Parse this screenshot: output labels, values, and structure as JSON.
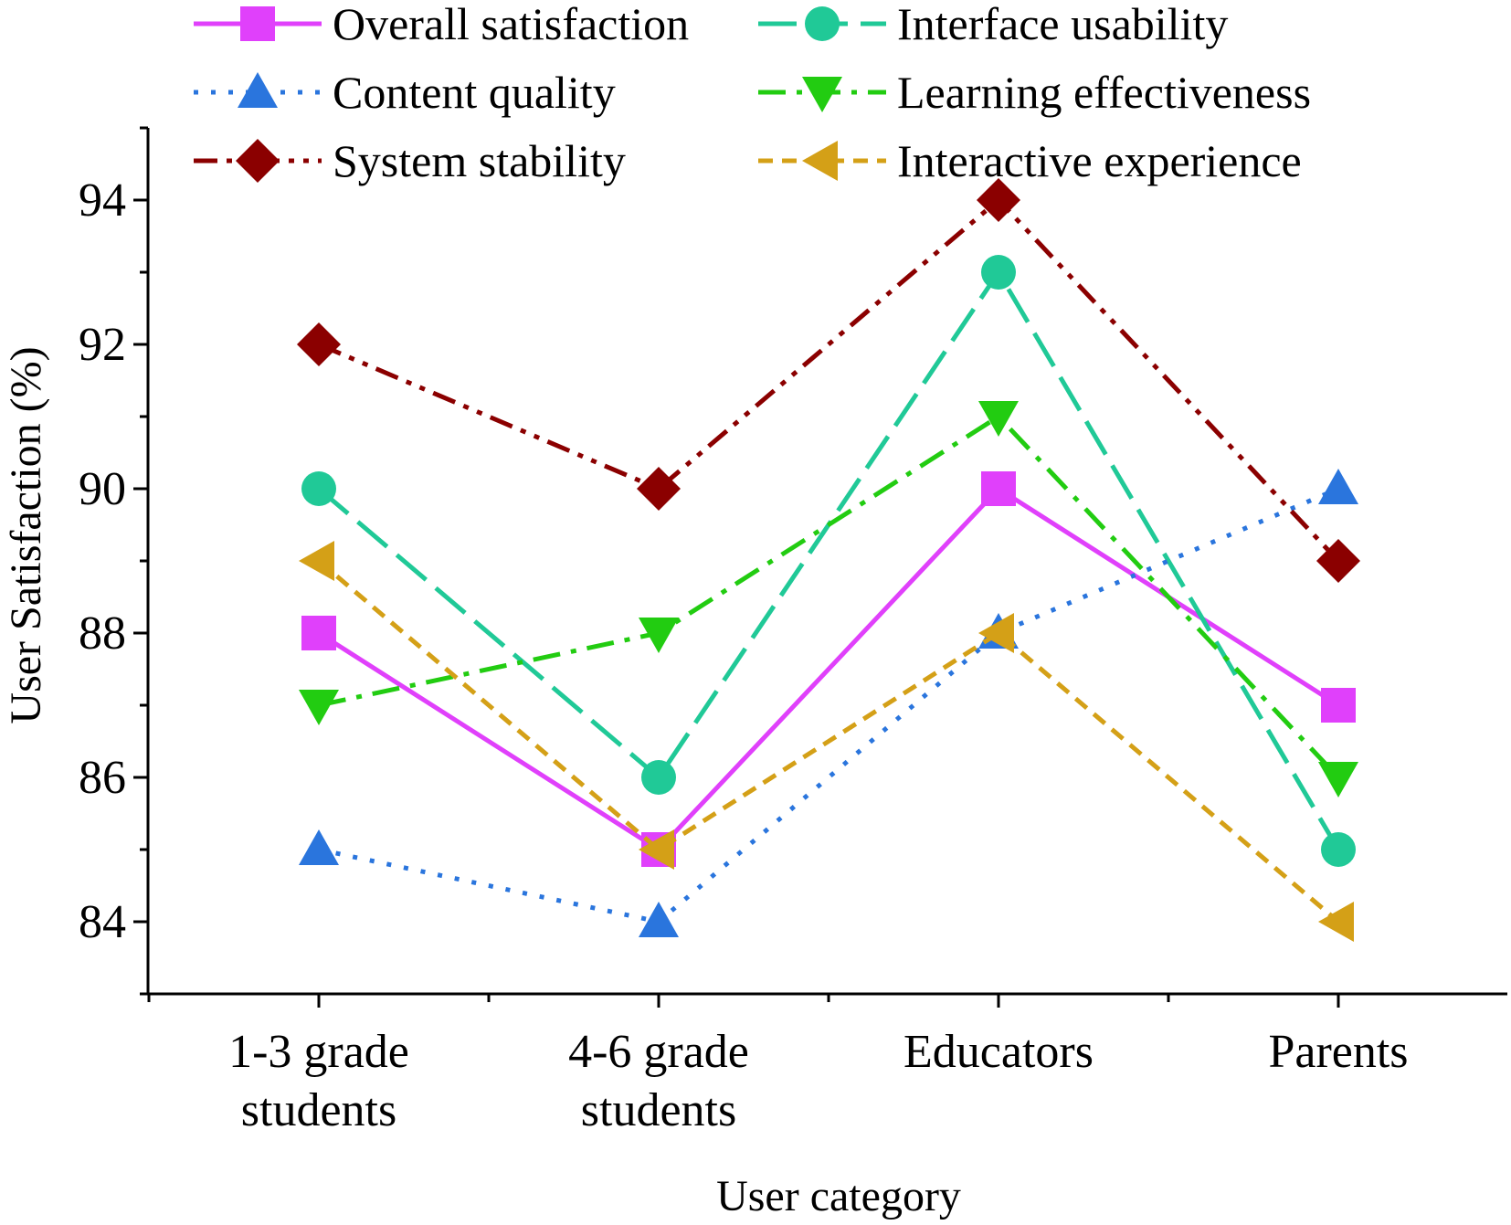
{
  "chart_data": {
    "type": "line",
    "title": "",
    "xlabel": "User category",
    "ylabel": "User Satisfaction (%)",
    "categories": [
      [
        "1-3 grade",
        "students"
      ],
      [
        "4-6 grade",
        "students"
      ],
      [
        "Educators"
      ],
      [
        "Parents"
      ]
    ],
    "ylim": [
      83,
      95
    ],
    "yticks": [
      84,
      86,
      88,
      90,
      92,
      94
    ],
    "legend_position": "top",
    "series": [
      {
        "name": "Overall satisfaction",
        "values": [
          88,
          85,
          90,
          87
        ],
        "color": "#e040fb",
        "marker": "square",
        "dash": "solid"
      },
      {
        "name": "Interface usability",
        "values": [
          90,
          86,
          93,
          85
        ],
        "color": "#20c997",
        "marker": "circle",
        "dash": "long-dash"
      },
      {
        "name": "Content quality",
        "values": [
          85,
          84,
          88,
          90
        ],
        "color": "#2a75dd",
        "marker": "triangle-up",
        "dash": "dot"
      },
      {
        "name": "Learning effectiveness",
        "values": [
          87,
          88,
          91,
          86
        ],
        "color": "#22cc11",
        "marker": "triangle-down",
        "dash": "dash-dot"
      },
      {
        "name": "System stability",
        "values": [
          92,
          90,
          94,
          89
        ],
        "color": "#8b0000",
        "marker": "diamond",
        "dash": "dash-dot-dot"
      },
      {
        "name": "Interactive experience",
        "values": [
          89,
          85,
          88,
          84
        ],
        "color": "#d4a017",
        "marker": "triangle-left",
        "dash": "short-dash"
      }
    ]
  }
}
